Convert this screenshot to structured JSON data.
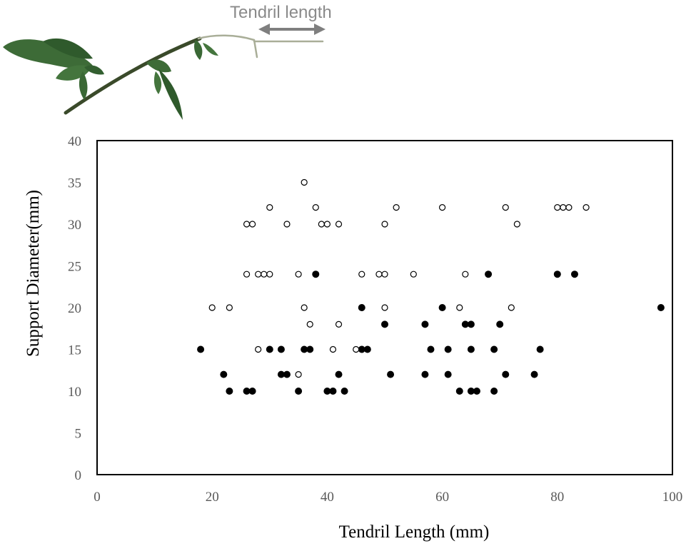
{
  "annotation": {
    "label": "Tendril length",
    "arrow_color": "#7f7f7f"
  },
  "photo": {
    "subject": "plant-shoot-with-tendril",
    "leaf_color": "#3d6b37",
    "stem_color": "#3a4a2a"
  },
  "chart_data": {
    "type": "scatter",
    "title": "",
    "xlabel": "Tendril Length (mm)",
    "ylabel": "Support Diameter(mm)",
    "xlim": [
      0,
      100
    ],
    "ylim": [
      0,
      40
    ],
    "xticks": [
      0,
      20,
      40,
      60,
      80,
      100
    ],
    "yticks": [
      0,
      5,
      10,
      15,
      20,
      25,
      30,
      35,
      40
    ],
    "grid": false,
    "legend": "none",
    "series": [
      {
        "marker": "filled-circle",
        "color": "#000000",
        "points": [
          [
            18,
            15
          ],
          [
            22,
            12
          ],
          [
            23,
            10
          ],
          [
            26,
            10
          ],
          [
            27,
            10
          ],
          [
            30,
            15
          ],
          [
            32,
            12
          ],
          [
            32,
            15
          ],
          [
            33,
            12
          ],
          [
            35,
            10
          ],
          [
            36,
            15
          ],
          [
            37,
            15
          ],
          [
            38,
            24
          ],
          [
            40,
            10
          ],
          [
            41,
            10
          ],
          [
            42,
            12
          ],
          [
            43,
            10
          ],
          [
            46,
            15
          ],
          [
            46,
            20
          ],
          [
            47,
            15
          ],
          [
            50,
            18
          ],
          [
            51,
            12
          ],
          [
            57,
            18
          ],
          [
            57,
            12
          ],
          [
            58,
            15
          ],
          [
            60,
            20
          ],
          [
            61,
            15
          ],
          [
            61,
            12
          ],
          [
            63,
            10
          ],
          [
            64,
            18
          ],
          [
            65,
            18
          ],
          [
            65,
            15
          ],
          [
            65,
            10
          ],
          [
            66,
            10
          ],
          [
            68,
            24
          ],
          [
            69,
            15
          ],
          [
            69,
            10
          ],
          [
            70,
            18
          ],
          [
            71,
            12
          ],
          [
            76,
            12
          ],
          [
            77,
            15
          ],
          [
            80,
            24
          ],
          [
            83,
            24
          ],
          [
            98,
            20
          ]
        ]
      },
      {
        "marker": "open-circle",
        "color": "#000000",
        "points": [
          [
            20,
            20
          ],
          [
            23,
            20
          ],
          [
            26,
            30
          ],
          [
            26,
            24
          ],
          [
            27,
            30
          ],
          [
            28,
            24
          ],
          [
            28,
            15
          ],
          [
            29,
            24
          ],
          [
            30,
            32
          ],
          [
            30,
            24
          ],
          [
            33,
            30
          ],
          [
            35,
            24
          ],
          [
            35,
            12
          ],
          [
            36,
            35
          ],
          [
            36,
            20
          ],
          [
            37,
            18
          ],
          [
            38,
            32
          ],
          [
            39,
            30
          ],
          [
            40,
            30
          ],
          [
            41,
            15
          ],
          [
            42,
            30
          ],
          [
            42,
            18
          ],
          [
            45,
            15
          ],
          [
            46,
            24
          ],
          [
            49,
            24
          ],
          [
            50,
            24
          ],
          [
            50,
            30
          ],
          [
            50,
            20
          ],
          [
            52,
            32
          ],
          [
            55,
            24
          ],
          [
            60,
            32
          ],
          [
            63,
            20
          ],
          [
            64,
            24
          ],
          [
            71,
            32
          ],
          [
            72,
            20
          ],
          [
            73,
            30
          ],
          [
            80,
            32
          ],
          [
            81,
            32
          ],
          [
            82,
            32
          ],
          [
            85,
            32
          ]
        ]
      }
    ]
  }
}
